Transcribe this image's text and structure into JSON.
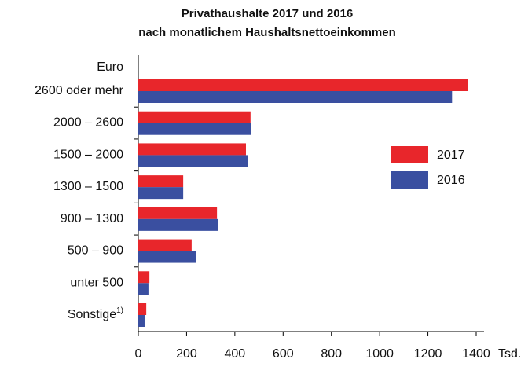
{
  "chart_data": {
    "type": "hbar",
    "title": [
      "Privathaushalte 2017 und 2016",
      "nach monatlichem Haushaltsnettoeinkommen"
    ],
    "y_axis_label": "Euro",
    "x_axis_label": "Tsd.",
    "categories": [
      "2600 oder mehr",
      "2000 – 2600",
      "1500 – 2000",
      "1300 – 1500",
      "900 – 1300",
      "500 – 900",
      "unter 500",
      "Sonstige"
    ],
    "footnote_marks": [
      null,
      null,
      null,
      null,
      null,
      null,
      null,
      "1)"
    ],
    "series": [
      {
        "name": "2017",
        "color": "#e8262b",
        "values": [
          1365,
          465,
          446,
          186,
          326,
          221,
          46,
          33
        ]
      },
      {
        "name": "2016",
        "color": "#3a4fa0",
        "values": [
          1300,
          468,
          453,
          186,
          332,
          238,
          42,
          26
        ]
      }
    ],
    "xlim": [
      0,
      1400
    ],
    "xticks": [
      0,
      200,
      400,
      600,
      800,
      1000,
      1200,
      1400
    ],
    "legend": "right"
  }
}
